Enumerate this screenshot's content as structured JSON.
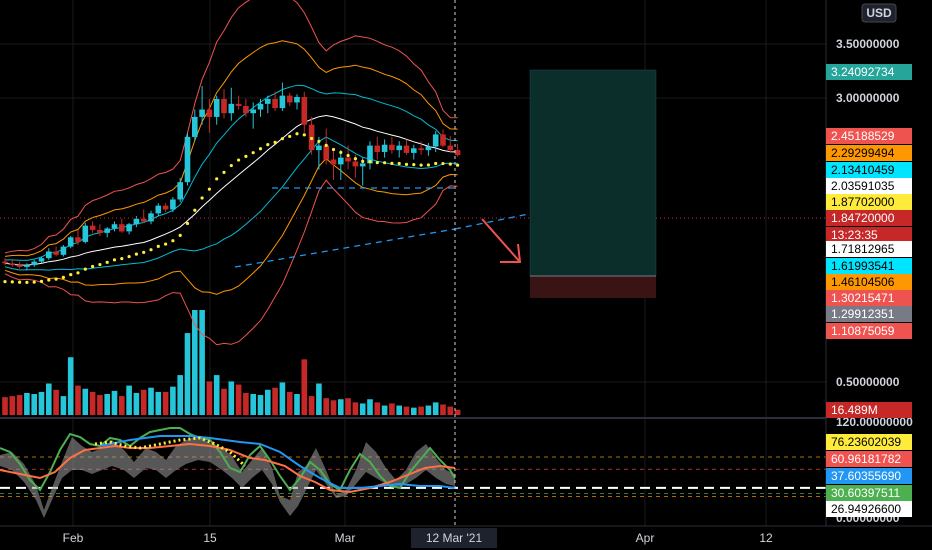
{
  "header": {
    "currency": "USD"
  },
  "colors": {
    "background": "#000000",
    "up": "#26c6da",
    "down": "#c62828",
    "grid": "#1a1a1a",
    "crosshair": "#cfcfcf",
    "text": "#d1d4dc",
    "dots": "#ffeb3b"
  },
  "price_axis": {
    "labels": [
      "3.50000000",
      "3.00000000",
      "0.50000000"
    ]
  },
  "indicator_axis": {
    "labels": [
      "120.00000000",
      "0.00000000"
    ]
  },
  "badges": [
    {
      "text": "3.24092734",
      "bg": "#26a69a",
      "fg": "#ffffff"
    },
    {
      "text": "2.45188529",
      "bg": "#ef5350",
      "fg": "#ffffff"
    },
    {
      "text": "2.29299494",
      "bg": "#ff9800",
      "fg": "#000000"
    },
    {
      "text": "2.13410459",
      "bg": "#00e5ff",
      "fg": "#000000"
    },
    {
      "text": "2.03591035",
      "bg": "#ffffff",
      "fg": "#000000"
    },
    {
      "text": "1.87702000",
      "bg": "#ffeb3b",
      "fg": "#000000"
    },
    {
      "text": "1.84720000",
      "bg": "#c62828",
      "fg": "#ffffff"
    },
    {
      "text": "13:23:35",
      "bg": "#c62828",
      "fg": "#ffffff"
    },
    {
      "text": "1.71812965",
      "bg": "#ffffff",
      "fg": "#000000"
    },
    {
      "text": "1.61993541",
      "bg": "#00e5ff",
      "fg": "#000000"
    },
    {
      "text": "1.46104506",
      "bg": "#ff9800",
      "fg": "#000000"
    },
    {
      "text": "1.30215471",
      "bg": "#ef5350",
      "fg": "#ffffff"
    },
    {
      "text": "1.29912351",
      "bg": "#787b86",
      "fg": "#ffffff"
    },
    {
      "text": "1.10875059",
      "bg": "#ef5350",
      "fg": "#ffffff"
    },
    {
      "text": "16.489M",
      "bg": "#c62828",
      "fg": "#ffffff"
    },
    {
      "text": "76.23602039",
      "bg": "#ffeb3b",
      "fg": "#000000"
    },
    {
      "text": "60.96181782",
      "bg": "#ef5350",
      "fg": "#ffffff"
    },
    {
      "text": "37.60355690",
      "bg": "#2196f3",
      "fg": "#ffffff"
    },
    {
      "text": "30.60397511",
      "bg": "#4caf50",
      "fg": "#ffffff"
    },
    {
      "text": "26.94926600",
      "bg": "#ffffff",
      "fg": "#000000"
    }
  ],
  "time_axis": {
    "labels": [
      "Feb",
      "15",
      "Mar",
      "Apr",
      "12"
    ],
    "crosshair_label": "12 Mar '21"
  },
  "chart_data": {
    "type": "candlestick",
    "price_scale": "log",
    "candles": [
      [
        1.0,
        1.02,
        0.98,
        0.99
      ],
      [
        0.99,
        1.01,
        0.97,
        0.98
      ],
      [
        0.98,
        1.0,
        0.96,
        0.97
      ],
      [
        0.97,
        0.99,
        0.95,
        0.98
      ],
      [
        0.98,
        1.01,
        0.97,
        1.0
      ],
      [
        1.0,
        1.03,
        0.99,
        1.02
      ],
      [
        1.02,
        1.08,
        1.01,
        1.06
      ],
      [
        1.06,
        1.09,
        1.03,
        1.04
      ],
      [
        1.04,
        1.1,
        1.03,
        1.09
      ],
      [
        1.09,
        1.16,
        1.08,
        1.15
      ],
      [
        1.15,
        1.2,
        1.1,
        1.12
      ],
      [
        1.12,
        1.25,
        1.11,
        1.23
      ],
      [
        1.23,
        1.26,
        1.18,
        1.2
      ],
      [
        1.2,
        1.24,
        1.16,
        1.18
      ],
      [
        1.18,
        1.22,
        1.15,
        1.21
      ],
      [
        1.21,
        1.26,
        1.19,
        1.24
      ],
      [
        1.24,
        1.28,
        1.18,
        1.19
      ],
      [
        1.19,
        1.25,
        1.17,
        1.24
      ],
      [
        1.24,
        1.3,
        1.22,
        1.28
      ],
      [
        1.28,
        1.35,
        1.25,
        1.26
      ],
      [
        1.26,
        1.34,
        1.24,
        1.32
      ],
      [
        1.32,
        1.4,
        1.3,
        1.38
      ],
      [
        1.38,
        1.4,
        1.33,
        1.35
      ],
      [
        1.35,
        1.45,
        1.33,
        1.43
      ],
      [
        1.43,
        1.62,
        1.41,
        1.58
      ],
      [
        1.58,
        2.1,
        1.55,
        2.05
      ],
      [
        2.05,
        2.4,
        2.0,
        2.3
      ],
      [
        2.3,
        2.75,
        2.2,
        2.4
      ],
      [
        2.4,
        2.55,
        2.1,
        2.3
      ],
      [
        2.3,
        2.6,
        2.2,
        2.55
      ],
      [
        2.55,
        2.7,
        2.28,
        2.35
      ],
      [
        2.35,
        2.72,
        2.25,
        2.48
      ],
      [
        2.48,
        2.6,
        2.4,
        2.45
      ],
      [
        2.45,
        2.55,
        2.3,
        2.35
      ],
      [
        2.35,
        2.5,
        2.15,
        2.4
      ],
      [
        2.4,
        2.55,
        2.3,
        2.48
      ],
      [
        2.48,
        2.6,
        2.35,
        2.55
      ],
      [
        2.55,
        2.66,
        2.38,
        2.42
      ],
      [
        2.42,
        2.8,
        2.38,
        2.6
      ],
      [
        2.6,
        2.64,
        2.45,
        2.5
      ],
      [
        2.5,
        2.62,
        2.4,
        2.58
      ],
      [
        2.58,
        2.66,
        2.1,
        2.2
      ],
      [
        2.2,
        2.3,
        1.85,
        1.9
      ],
      [
        1.9,
        2.05,
        1.7,
        1.95
      ],
      [
        1.95,
        2.15,
        1.75,
        1.8
      ],
      [
        1.8,
        1.9,
        1.6,
        1.75
      ],
      [
        1.75,
        1.9,
        1.6,
        1.82
      ],
      [
        1.82,
        1.95,
        1.7,
        1.78
      ],
      [
        1.78,
        1.85,
        1.62,
        1.73
      ],
      [
        1.73,
        1.82,
        1.55,
        1.76
      ],
      [
        1.76,
        2.0,
        1.7,
        1.95
      ],
      [
        1.95,
        2.05,
        1.8,
        1.88
      ],
      [
        1.88,
        2.02,
        1.82,
        1.96
      ],
      [
        1.96,
        2.05,
        1.86,
        1.9
      ],
      [
        1.9,
        2.0,
        1.82,
        1.95
      ],
      [
        1.95,
        2.02,
        1.85,
        1.87
      ],
      [
        1.87,
        1.96,
        1.8,
        1.92
      ],
      [
        1.92,
        2.0,
        1.85,
        1.9
      ],
      [
        1.9,
        1.98,
        1.84,
        1.94
      ],
      [
        1.94,
        2.12,
        1.88,
        2.08
      ],
      [
        2.08,
        2.14,
        1.93,
        1.95
      ],
      [
        1.95,
        2.06,
        1.88,
        1.9
      ],
      [
        1.9,
        1.97,
        1.83,
        1.847
      ]
    ],
    "volume_scale": "relative",
    "volume": [
      0.17,
      0.18,
      0.19,
      0.21,
      0.2,
      0.22,
      0.3,
      0.24,
      0.18,
      0.55,
      0.28,
      0.25,
      0.22,
      0.19,
      0.2,
      0.23,
      0.18,
      0.28,
      0.21,
      0.24,
      0.26,
      0.22,
      0.22,
      0.27,
      0.38,
      0.78,
      1.0,
      1.0,
      0.32,
      0.38,
      0.25,
      0.32,
      0.29,
      0.21,
      0.2,
      0.19,
      0.24,
      0.26,
      0.31,
      0.22,
      0.2,
      0.53,
      0.18,
      0.3,
      0.16,
      0.14,
      0.15,
      0.16,
      0.12,
      0.11,
      0.15,
      0.12,
      0.09,
      0.11,
      0.09,
      0.08,
      0.07,
      0.08,
      0.09,
      0.12,
      0.1,
      0.08,
      0.05
    ],
    "indicator_range": [
      0,
      120
    ],
    "indicator_levels": [
      76.236,
      60.962,
      37.604,
      30.604,
      26.949
    ]
  }
}
